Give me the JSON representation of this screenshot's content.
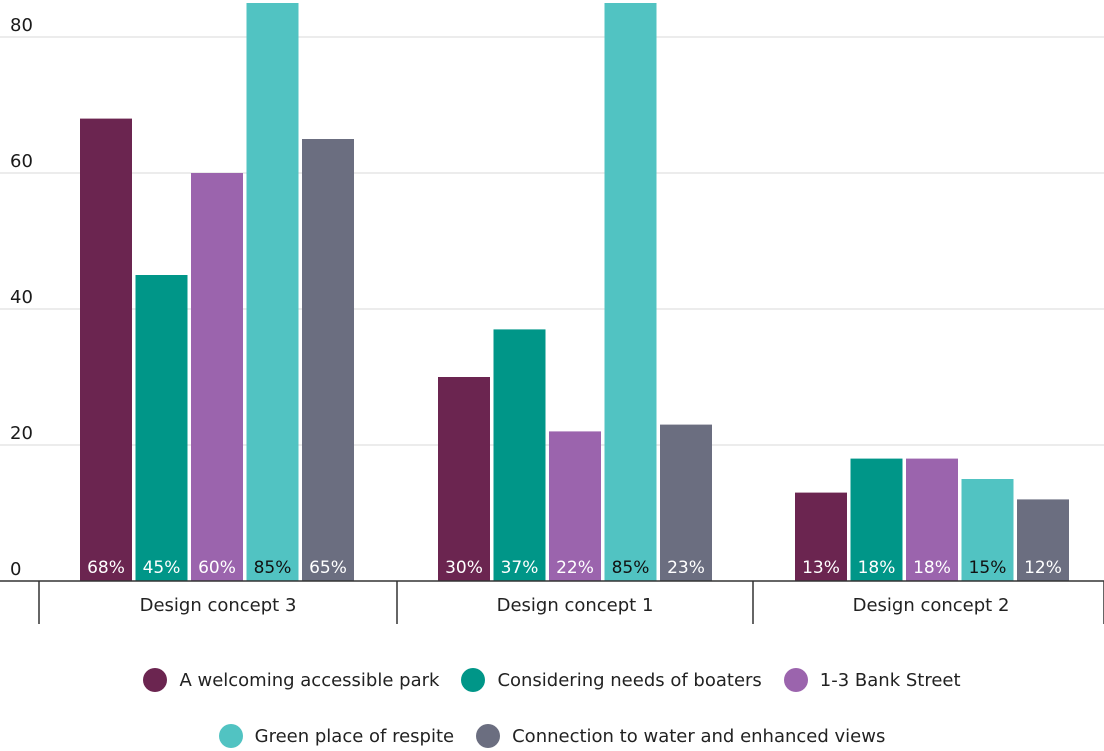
{
  "chart_data": {
    "type": "bar",
    "categories": [
      "Design concept 3",
      "Design concept 1",
      "Design concept 2"
    ],
    "series": [
      {
        "name": "A welcoming accessible park",
        "values": [
          68,
          30,
          13
        ],
        "labels": [
          "68%",
          "30%",
          "13%"
        ],
        "color": "#6b2550",
        "label_color": "#ffffff"
      },
      {
        "name": "Considering needs of boaters",
        "values": [
          45,
          37,
          18
        ],
        "labels": [
          "45%",
          "37%",
          "18%"
        ],
        "color": "#009688",
        "label_color": "#ffffff"
      },
      {
        "name": "1-3 Bank Street",
        "values": [
          60,
          22,
          18
        ],
        "labels": [
          "60%",
          "22%",
          "18%"
        ],
        "color": "#9b64ad",
        "label_color": "#ffffff"
      },
      {
        "name": "Green place of respite",
        "values": [
          85,
          85,
          15
        ],
        "labels": [
          "85%",
          "85%",
          "15%"
        ],
        "color": "#51c3c2",
        "label_color": "#111111"
      },
      {
        "name": "Connection to water and enhanced views",
        "values": [
          65,
          23,
          12
        ],
        "labels": [
          "65%",
          "23%",
          "12%"
        ],
        "color": "#6b6e80",
        "label_color": "#ffffff"
      }
    ],
    "yticks": [
      "0",
      "20",
      "40",
      "60",
      "80"
    ],
    "ylim": [
      0,
      85
    ],
    "grid": true,
    "legend": "bottom",
    "title": "",
    "xlabel": "",
    "ylabel": ""
  }
}
